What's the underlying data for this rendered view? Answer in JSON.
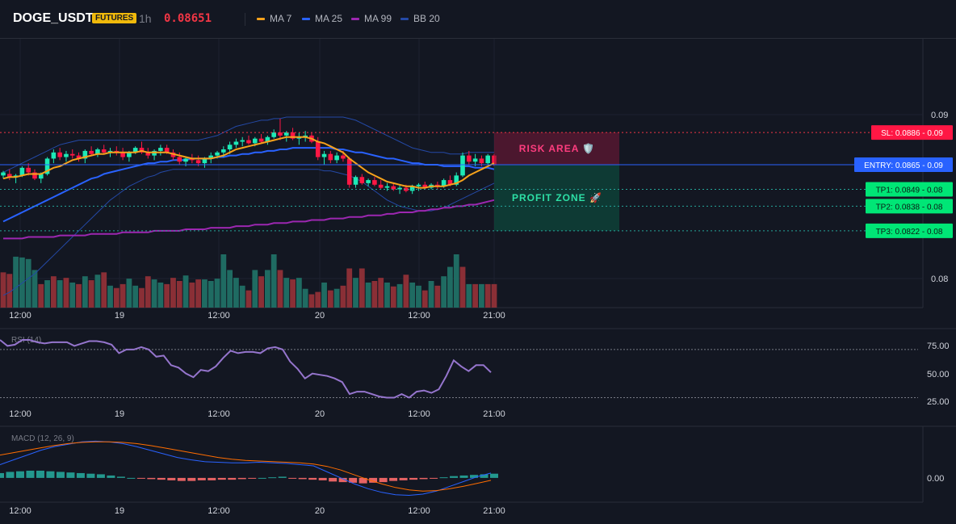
{
  "header": {
    "symbol": "DOGE_USDT",
    "badge": "FUTURES",
    "timeframe": "1h",
    "price": "0.08651",
    "legend": [
      {
        "name": "MA 7",
        "color": "#f7a21b"
      },
      {
        "name": "MA 25",
        "color": "#2962ff"
      },
      {
        "name": "MA 99",
        "color": "#9c27b0"
      },
      {
        "name": "BB 20",
        "color": "#2449a6"
      }
    ]
  },
  "colors": {
    "up": "#26a69a",
    "down": "#ef5350",
    "candle_up": "#1de9b6",
    "candle_down": "#ff1744"
  },
  "chart_data": {
    "type": "candlestick",
    "price_axis": {
      "ticks": [
        0.09,
        0.08
      ],
      "range": [
        0.0772,
        0.0947
      ]
    },
    "time_ticks": [
      "12:00",
      "19",
      "12:00",
      "20",
      "12:00",
      "21:00"
    ],
    "candles": [
      [
        0.0858,
        0.0861,
        0.0856,
        0.086
      ],
      [
        0.0859,
        0.0862,
        0.0855,
        0.0857
      ],
      [
        0.0857,
        0.0859,
        0.0853,
        0.0858
      ],
      [
        0.0858,
        0.0864,
        0.0857,
        0.0863
      ],
      [
        0.0863,
        0.0866,
        0.0858,
        0.086
      ],
      [
        0.086,
        0.0862,
        0.0855,
        0.0856
      ],
      [
        0.0856,
        0.086,
        0.0853,
        0.0859
      ],
      [
        0.0859,
        0.087,
        0.0858,
        0.0869
      ],
      [
        0.0869,
        0.0875,
        0.0866,
        0.0873
      ],
      [
        0.0873,
        0.0876,
        0.0868,
        0.087
      ],
      [
        0.087,
        0.0874,
        0.0867,
        0.0872
      ],
      [
        0.0872,
        0.0875,
        0.0869,
        0.0871
      ],
      [
        0.0871,
        0.0873,
        0.0867,
        0.0869
      ],
      [
        0.0869,
        0.0875,
        0.0866,
        0.0874
      ],
      [
        0.0874,
        0.0877,
        0.0871,
        0.0872
      ],
      [
        0.0872,
        0.0876,
        0.087,
        0.0875
      ],
      [
        0.0875,
        0.0878,
        0.0872,
        0.0873
      ],
      [
        0.0873,
        0.0876,
        0.087,
        0.0874
      ],
      [
        0.0874,
        0.0877,
        0.0871,
        0.0873
      ],
      [
        0.0873,
        0.0876,
        0.0868,
        0.087
      ],
      [
        0.087,
        0.0874,
        0.0867,
        0.0873
      ],
      [
        0.0873,
        0.0877,
        0.0872,
        0.0876
      ],
      [
        0.0876,
        0.088,
        0.0872,
        0.0873
      ],
      [
        0.0873,
        0.0876,
        0.0869,
        0.0871
      ],
      [
        0.0871,
        0.0875,
        0.0868,
        0.0874
      ],
      [
        0.0874,
        0.0878,
        0.0871,
        0.0876
      ],
      [
        0.0876,
        0.0878,
        0.0872,
        0.0873
      ],
      [
        0.0873,
        0.0875,
        0.0868,
        0.087
      ],
      [
        0.087,
        0.0873,
        0.0865,
        0.0867
      ],
      [
        0.0867,
        0.087,
        0.0864,
        0.0869
      ],
      [
        0.0869,
        0.0872,
        0.0866,
        0.0868
      ],
      [
        0.0868,
        0.0871,
        0.0864,
        0.0866
      ],
      [
        0.0866,
        0.087,
        0.0863,
        0.0869
      ],
      [
        0.0869,
        0.0873,
        0.0866,
        0.0871
      ],
      [
        0.0871,
        0.0874,
        0.0869,
        0.0873
      ],
      [
        0.0873,
        0.0877,
        0.087,
        0.0875
      ],
      [
        0.0875,
        0.088,
        0.0872,
        0.0878
      ],
      [
        0.0878,
        0.0882,
        0.0876,
        0.088
      ],
      [
        0.088,
        0.0883,
        0.0877,
        0.0881
      ],
      [
        0.0881,
        0.0884,
        0.0878,
        0.0879
      ],
      [
        0.0879,
        0.0883,
        0.0877,
        0.0882
      ],
      [
        0.0882,
        0.0885,
        0.0879,
        0.088
      ],
      [
        0.088,
        0.0884,
        0.0878,
        0.0883
      ],
      [
        0.0883,
        0.0888,
        0.0882,
        0.0886
      ],
      [
        0.0886,
        0.0895,
        0.0881,
        0.0884
      ],
      [
        0.0884,
        0.0887,
        0.088,
        0.0886
      ],
      [
        0.0886,
        0.0889,
        0.0881,
        0.0882
      ],
      [
        0.0882,
        0.0886,
        0.0878,
        0.0883
      ],
      [
        0.0883,
        0.0887,
        0.088,
        0.0884
      ],
      [
        0.0884,
        0.0886,
        0.0879,
        0.088
      ],
      [
        0.088,
        0.0883,
        0.0868,
        0.087
      ],
      [
        0.087,
        0.0874,
        0.0865,
        0.0872
      ],
      [
        0.0872,
        0.0874,
        0.0866,
        0.0868
      ],
      [
        0.0868,
        0.0873,
        0.0866,
        0.0871
      ],
      [
        0.0871,
        0.0874,
        0.0867,
        0.0869
      ],
      [
        0.0869,
        0.087,
        0.085,
        0.0852
      ],
      [
        0.0852,
        0.0858,
        0.085,
        0.0857
      ],
      [
        0.0857,
        0.0859,
        0.0852,
        0.0853
      ],
      [
        0.0853,
        0.0856,
        0.0851,
        0.0855
      ],
      [
        0.0855,
        0.0857,
        0.0851,
        0.0852
      ],
      [
        0.0852,
        0.0855,
        0.0849,
        0.085
      ],
      [
        0.085,
        0.0853,
        0.0848,
        0.0851
      ],
      [
        0.0851,
        0.0853,
        0.0848,
        0.0849
      ],
      [
        0.0849,
        0.0852,
        0.0846,
        0.085
      ],
      [
        0.085,
        0.0852,
        0.0847,
        0.0848
      ],
      [
        0.0848,
        0.0852,
        0.0846,
        0.0851
      ],
      [
        0.0851,
        0.0853,
        0.0848,
        0.0852
      ],
      [
        0.0852,
        0.0854,
        0.0849,
        0.085
      ],
      [
        0.085,
        0.0853,
        0.0849,
        0.0852
      ],
      [
        0.0852,
        0.0854,
        0.0849,
        0.0851
      ],
      [
        0.0851,
        0.0856,
        0.085,
        0.0855
      ],
      [
        0.0855,
        0.0858,
        0.0851,
        0.0852
      ],
      [
        0.0852,
        0.086,
        0.0851,
        0.0858
      ],
      [
        0.0858,
        0.0873,
        0.0857,
        0.0871
      ],
      [
        0.0871,
        0.0874,
        0.0865,
        0.0867
      ],
      [
        0.0867,
        0.0872,
        0.0864,
        0.0869
      ],
      [
        0.0869,
        0.0871,
        0.0864,
        0.0866
      ],
      [
        0.0866,
        0.0872,
        0.0865,
        0.0871
      ],
      [
        0.0871,
        0.0872,
        0.0864,
        0.0865
      ]
    ],
    "ma7": [
      0.0856,
      0.0857,
      0.0857,
      0.0858,
      0.0859,
      0.0859,
      0.0859,
      0.0861,
      0.0863,
      0.0864,
      0.0866,
      0.0868,
      0.0869,
      0.087,
      0.0871,
      0.0872,
      0.0872,
      0.0873,
      0.0873,
      0.0873,
      0.0873,
      0.0873,
      0.0874,
      0.0873,
      0.0873,
      0.0873,
      0.0873,
      0.0872,
      0.0871,
      0.087,
      0.0869,
      0.0869,
      0.0869,
      0.0869,
      0.087,
      0.0871,
      0.0873,
      0.0875,
      0.0876,
      0.0877,
      0.0878,
      0.0879,
      0.088,
      0.0881,
      0.0882,
      0.0883,
      0.0883,
      0.0883,
      0.0883,
      0.0882,
      0.088,
      0.0879,
      0.0877,
      0.0875,
      0.0873,
      0.0869,
      0.0866,
      0.0863,
      0.086,
      0.0858,
      0.0856,
      0.0854,
      0.0853,
      0.0852,
      0.0851,
      0.0851,
      0.085,
      0.085,
      0.0851,
      0.0851,
      0.0851,
      0.0852,
      0.0853,
      0.0855,
      0.0858,
      0.086,
      0.0862,
      0.0864,
      0.0866
    ],
    "ma25": [
      0.0828,
      0.083,
      0.0832,
      0.0834,
      0.0836,
      0.0838,
      0.084,
      0.0842,
      0.0844,
      0.0846,
      0.0848,
      0.085,
      0.0852,
      0.0854,
      0.0856,
      0.0857,
      0.0859,
      0.086,
      0.0861,
      0.0862,
      0.0863,
      0.0864,
      0.0865,
      0.0866,
      0.0866,
      0.0867,
      0.0867,
      0.0868,
      0.0868,
      0.0868,
      0.0869,
      0.0869,
      0.0869,
      0.0869,
      0.087,
      0.087,
      0.0871,
      0.0871,
      0.0872,
      0.0872,
      0.0873,
      0.0873,
      0.0874,
      0.0874,
      0.0875,
      0.0875,
      0.0876,
      0.0876,
      0.0876,
      0.0876,
      0.0876,
      0.0876,
      0.0876,
      0.0875,
      0.0875,
      0.0874,
      0.0873,
      0.0873,
      0.0872,
      0.0871,
      0.087,
      0.0869,
      0.0869,
      0.0868,
      0.0867,
      0.0866,
      0.0866,
      0.0865,
      0.0865,
      0.0865,
      0.0864,
      0.0864,
      0.0864,
      0.0864,
      0.0864,
      0.0863,
      0.0863,
      0.0863,
      0.0862
    ],
    "ma99": [
      0.0817,
      0.0817,
      0.0817,
      0.0817,
      0.0818,
      0.0818,
      0.0818,
      0.0818,
      0.0818,
      0.0819,
      0.0819,
      0.0819,
      0.0819,
      0.0819,
      0.082,
      0.082,
      0.082,
      0.082,
      0.082,
      0.0821,
      0.0821,
      0.0821,
      0.0821,
      0.0821,
      0.0822,
      0.0822,
      0.0822,
      0.0822,
      0.0822,
      0.0823,
      0.0823,
      0.0823,
      0.0823,
      0.0824,
      0.0824,
      0.0824,
      0.0824,
      0.0825,
      0.0825,
      0.0825,
      0.0826,
      0.0826,
      0.0826,
      0.0827,
      0.0827,
      0.0827,
      0.0828,
      0.0828,
      0.0828,
      0.0829,
      0.0829,
      0.0829,
      0.083,
      0.083,
      0.083,
      0.0831,
      0.0831,
      0.0831,
      0.0832,
      0.0832,
      0.0832,
      0.0833,
      0.0833,
      0.0834,
      0.0834,
      0.0834,
      0.0835,
      0.0835,
      0.0836,
      0.0836,
      0.0837,
      0.0837,
      0.0838,
      0.0838,
      0.0839,
      0.0839,
      0.084,
      0.0841,
      0.0842
    ],
    "bb_upper": [
      0.086,
      0.0862,
      0.0864,
      0.0866,
      0.0868,
      0.087,
      0.0872,
      0.0874,
      0.0876,
      0.0878,
      0.0879,
      0.088,
      0.0881,
      0.0881,
      0.0881,
      0.0881,
      0.0881,
      0.0881,
      0.0881,
      0.0881,
      0.0881,
      0.0881,
      0.0881,
      0.0881,
      0.0881,
      0.0881,
      0.0881,
      0.0881,
      0.0881,
      0.0881,
      0.0881,
      0.0881,
      0.0882,
      0.0883,
      0.0884,
      0.0886,
      0.0888,
      0.089,
      0.0891,
      0.0892,
      0.0893,
      0.0894,
      0.0894,
      0.0895,
      0.0895,
      0.0896,
      0.0896,
      0.0896,
      0.0896,
      0.0896,
      0.0896,
      0.0896,
      0.0896,
      0.0896,
      0.0896,
      0.0895,
      0.0894,
      0.0892,
      0.089,
      0.0888,
      0.0886,
      0.0884,
      0.0882,
      0.088,
      0.0878,
      0.0876,
      0.0875,
      0.0874,
      0.0873,
      0.0873,
      0.0873,
      0.0872,
      0.0872,
      0.0872,
      0.0873,
      0.0873,
      0.0873,
      0.0873,
      0.0873
    ],
    "bb_lower": [
      0.078,
      0.0782,
      0.0785,
      0.0788,
      0.0791,
      0.0794,
      0.0798,
      0.0802,
      0.0806,
      0.081,
      0.0814,
      0.0818,
      0.0822,
      0.0826,
      0.083,
      0.0834,
      0.0838,
      0.0842,
      0.0845,
      0.0848,
      0.0851,
      0.0853,
      0.0855,
      0.0857,
      0.0858,
      0.086,
      0.0861,
      0.0862,
      0.0862,
      0.0862,
      0.0862,
      0.0862,
      0.0862,
      0.0862,
      0.0862,
      0.0862,
      0.0862,
      0.0862,
      0.0862,
      0.0862,
      0.0862,
      0.0862,
      0.0862,
      0.0862,
      0.0862,
      0.0862,
      0.0862,
      0.0862,
      0.0862,
      0.0862,
      0.0862,
      0.0861,
      0.0861,
      0.086,
      0.0859,
      0.0858,
      0.0856,
      0.0854,
      0.0851,
      0.0848,
      0.0845,
      0.0842,
      0.084,
      0.0838,
      0.0837,
      0.0836,
      0.0835,
      0.0835,
      0.0835,
      0.0836,
      0.0837,
      0.0839,
      0.0841,
      0.0843,
      0.0845,
      0.0847,
      0.0849,
      0.0851,
      0.0853
    ],
    "volume": [
      45,
      43,
      65,
      64,
      62,
      48,
      30,
      35,
      40,
      35,
      38,
      32,
      30,
      40,
      35,
      42,
      45,
      28,
      25,
      30,
      37,
      28,
      25,
      40,
      36,
      32,
      30,
      38,
      34,
      41,
      32,
      36,
      36,
      34,
      37,
      68,
      48,
      38,
      28,
      22,
      48,
      40,
      48,
      68,
      48,
      38,
      36,
      38,
      24,
      17,
      20,
      32,
      22,
      24,
      28,
      50,
      38,
      50,
      32,
      34,
      38,
      32,
      27,
      30,
      42,
      32,
      28,
      22,
      34,
      28,
      40,
      52,
      68,
      52,
      30,
      30,
      30,
      30,
      30
    ],
    "volume_up": [
      false,
      false,
      true,
      true,
      true,
      true,
      false,
      true,
      false,
      true,
      false,
      true,
      false,
      true,
      false,
      true,
      false,
      true,
      false,
      false,
      true,
      true,
      false,
      false,
      true,
      true,
      false,
      false,
      false,
      true,
      false,
      false,
      true,
      true,
      true,
      true,
      true,
      true,
      true,
      false,
      true,
      false,
      true,
      true,
      false,
      true,
      false,
      true,
      true,
      false,
      false,
      true,
      false,
      true,
      false,
      false,
      true,
      false,
      true,
      false,
      false,
      true,
      false,
      true,
      false,
      true,
      true,
      false,
      true,
      false,
      true,
      true,
      true,
      false,
      true,
      false,
      true,
      false,
      false
    ],
    "trade": {
      "stop_loss": {
        "label": "SL: 0.0886 - 0.09",
        "value": 0.0886
      },
      "entry": {
        "label": "ENTRY: 0.0865 - 0.09",
        "value": 0.0865
      },
      "take_profits": [
        {
          "label": "TP1: 0.0849 - 0.08",
          "value": 0.0849
        },
        {
          "label": "TP2: 0.0838 - 0.08",
          "value": 0.0838
        },
        {
          "label": "TP3: 0.0822 - 0.08",
          "value": 0.0822
        }
      ],
      "risk_label": "RISK AREA 🛡️",
      "profit_label": "PROFIT ZONE 🚀"
    },
    "rsi": {
      "title": "RSI (14)",
      "ticks": [
        "75.00",
        "50.00",
        "25.00"
      ],
      "levels": [
        70,
        30
      ],
      "range": [
        25,
        82
      ],
      "values": [
        78,
        73,
        74,
        78,
        78,
        76,
        75,
        76,
        76,
        76,
        73,
        75,
        77,
        77,
        76,
        74,
        67,
        70,
        70,
        72,
        70,
        64,
        65,
        57,
        55,
        50,
        47,
        53,
        52,
        56,
        63,
        69,
        67,
        68,
        68,
        67,
        71,
        72,
        70,
        60,
        54,
        46,
        50,
        49,
        48,
        46,
        43,
        33,
        35,
        35,
        33,
        31,
        30,
        30,
        33,
        30,
        35,
        36,
        34,
        37,
        48,
        61,
        56,
        52,
        57,
        57,
        51
      ]
    },
    "macd": {
      "title": "MACD (12, 26, 9)",
      "ticks": [
        "0.00"
      ],
      "range": [
        -0.00035,
        0.00075
      ],
      "macd_line": [
        0.00022,
        0.0003,
        0.00038,
        0.00046,
        0.00052,
        0.00056,
        0.0006,
        0.00061,
        0.0006,
        0.00057,
        0.00052,
        0.00046,
        0.0004,
        0.00034,
        0.0003,
        0.00027,
        0.00026,
        0.00025,
        0.00025,
        0.00026,
        0.00025,
        0.00024,
        0.00022,
        0.0002,
        0.0001,
        0.0,
        -0.0001,
        -0.00018,
        -0.00024,
        -0.00028,
        -0.00029,
        -0.00027,
        -0.00022,
        -0.00014,
        -6e-05,
        2e-05,
        8e-05
      ],
      "signal_line": [
        0.00038,
        0.00042,
        0.00046,
        0.0005,
        0.00054,
        0.00057,
        0.00059,
        0.0006,
        0.0006,
        0.00059,
        0.00057,
        0.00054,
        0.0005,
        0.00046,
        0.00042,
        0.00038,
        0.00034,
        0.00031,
        0.00029,
        0.00028,
        0.00027,
        0.00026,
        0.00025,
        0.00023,
        0.00019,
        0.00013,
        5e-05,
        -3e-05,
        -0.0001,
        -0.00016,
        -0.0002,
        -0.00022,
        -0.00021,
        -0.00018,
        -0.00014,
        -9e-05,
        -4e-05
      ],
      "histogram": [
        8e-05,
        0.0001,
        0.00011,
        0.00012,
        0.00012,
        0.00011,
        0.0001,
        9e-05,
        8e-05,
        7e-05,
        6e-05,
        4e-05,
        2e-05,
        0.0,
        -1e-05,
        -2e-05,
        -3e-05,
        -4e-05,
        -5e-05,
        -5e-05,
        -4e-05,
        -4e-05,
        -3e-05,
        -3e-05,
        -2e-05,
        -1e-05,
        0.0,
        1e-05,
        2e-05,
        -1e-05,
        -2e-05,
        -3e-05,
        -4e-05,
        -6e-05,
        -7e-05,
        -8e-05,
        -9e-05,
        -8e-05,
        -7e-05,
        -5e-05,
        -4e-05,
        -3e-05,
        -2e-05,
        -1e-05,
        1e-05,
        3e-05,
        4e-05,
        5e-05,
        6e-05,
        7e-05
      ]
    }
  }
}
